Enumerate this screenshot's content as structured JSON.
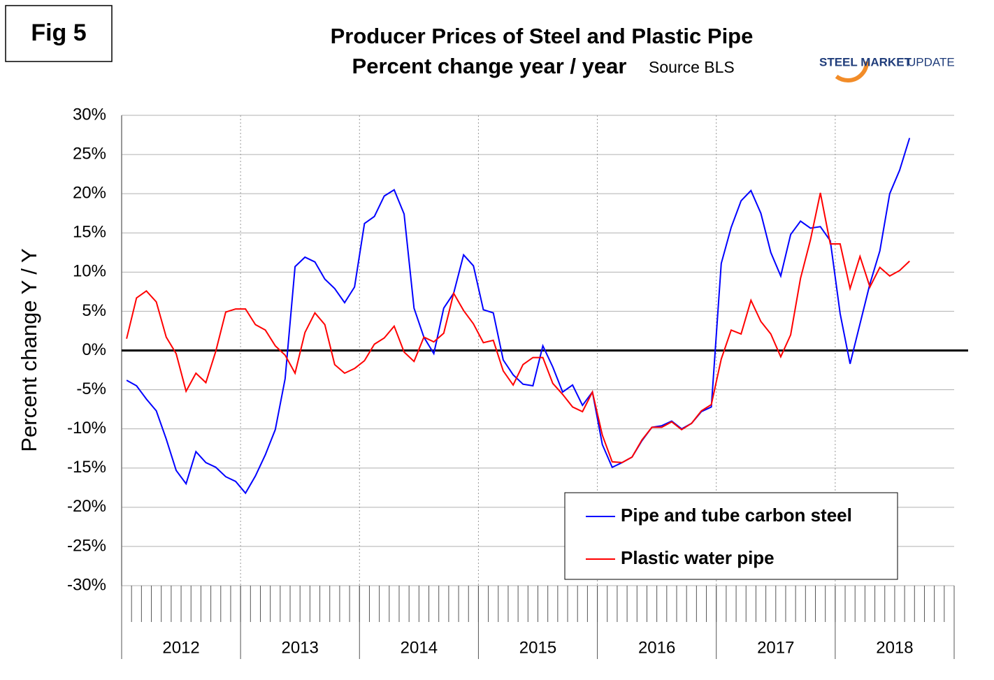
{
  "chart_data": {
    "type": "line",
    "figure_label": "Fig 5",
    "title": "Producer Prices of Steel and Plastic Pipe",
    "subtitle": "Percent change year / year",
    "source": "Source BLS",
    "logo": [
      "STEEL MARKET",
      "UPDATE"
    ],
    "y_label": "Percent change Y / Y",
    "year_labels": [
      "2012",
      "2013",
      "2014",
      "2015",
      "2016",
      "2017",
      "2018"
    ],
    "categories": [
      null,
      null,
      null,
      null,
      null,
      null,
      null,
      null,
      null,
      null,
      null,
      null,
      null,
      null,
      null,
      null,
      null,
      null,
      null,
      null,
      null,
      null,
      null,
      null,
      null,
      null,
      null,
      null,
      null,
      null,
      null,
      null,
      null,
      null,
      null,
      null,
      null,
      null,
      null,
      null,
      null,
      null,
      null,
      null,
      null,
      null,
      null,
      null,
      null,
      null,
      null,
      null,
      null,
      null,
      null,
      null,
      null,
      null,
      null,
      null,
      null,
      null,
      null,
      null,
      null,
      null,
      null,
      null,
      null,
      null,
      null,
      null,
      null,
      null,
      null,
      null,
      null,
      null,
      null,
      null,
      null,
      null,
      null,
      null
    ],
    "series": [
      {
        "name": "Pipe and tube carbon steel",
        "color": "#0000ff",
        "values": [
          -3.8,
          -4.5,
          -6.2,
          -7.7,
          -11.3,
          -15.3,
          -17.0,
          -12.9,
          -14.3,
          -14.9,
          -16.1,
          -16.7,
          -18.2,
          -16.0,
          -13.3,
          -10.1,
          -3.6,
          10.7,
          11.9,
          11.3,
          9.1,
          7.9,
          6.1,
          8.1,
          16.2,
          17.1,
          19.7,
          20.5,
          17.4,
          5.4,
          1.7,
          -0.4,
          5.4,
          7.3,
          12.2,
          10.8,
          5.2,
          4.8,
          -1.2,
          -3.1,
          -4.3,
          -4.5,
          0.6,
          -2.1,
          -5.3,
          -4.4,
          -7.0,
          -5.3,
          -12.0,
          -14.9,
          -14.3,
          -13.6,
          -11.5,
          -9.8,
          -9.6,
          -9.0,
          -10.0,
          -9.3,
          -7.8,
          -7.2,
          11.1,
          15.7,
          19.1,
          20.4,
          17.5,
          12.5,
          9.5,
          14.8,
          16.5,
          15.6,
          15.8,
          14.0,
          4.7,
          -1.7,
          3.4,
          8.5,
          12.7,
          20.0,
          23.0,
          27.1,
          null,
          null,
          null,
          null
        ]
      },
      {
        "name": "Plastic water pipe",
        "color": "#ff0000",
        "values": [
          1.5,
          6.7,
          7.6,
          6.2,
          1.7,
          -0.4,
          -5.2,
          -2.9,
          -4.1,
          -0.1,
          4.9,
          5.3,
          5.3,
          3.3,
          2.6,
          0.6,
          -0.6,
          -2.9,
          2.3,
          4.8,
          3.3,
          -1.8,
          -2.9,
          -2.3,
          -1.3,
          0.8,
          1.6,
          3.1,
          -0.2,
          -1.4,
          1.7,
          1.1,
          2.2,
          7.3,
          5.1,
          3.4,
          1.0,
          1.3,
          -2.6,
          -4.4,
          -1.8,
          -0.9,
          -0.9,
          -4.2,
          -5.6,
          -7.2,
          -7.8,
          -5.3,
          -10.8,
          -14.2,
          -14.3,
          -13.6,
          -11.4,
          -9.8,
          -9.8,
          -9.1,
          -10.1,
          -9.3,
          -7.7,
          -6.9,
          -1.1,
          2.6,
          2.1,
          6.4,
          3.7,
          2.1,
          -0.8,
          2.0,
          9.2,
          14.1,
          20.1,
          13.6,
          13.6,
          7.9,
          12.0,
          8.1,
          10.6,
          9.5,
          10.2,
          11.4,
          null,
          null,
          null,
          null
        ]
      }
    ],
    "ylim": [
      -30,
      30
    ],
    "yticks": [
      {
        "value": -30,
        "label": "-30%"
      },
      {
        "value": -25,
        "label": "-25%"
      },
      {
        "value": -20,
        "label": "-20%"
      },
      {
        "value": -15,
        "label": "-15%"
      },
      {
        "value": -10,
        "label": "-10%"
      },
      {
        "value": -5,
        "label": "-5%"
      },
      {
        "value": 0,
        "label": "0%"
      },
      {
        "value": 5,
        "label": "5%"
      },
      {
        "value": 10,
        "label": "10%"
      },
      {
        "value": 15,
        "label": "15%"
      },
      {
        "value": 20,
        "label": "20%"
      },
      {
        "value": 25,
        "label": "25%"
      },
      {
        "value": 30,
        "label": "30%"
      }
    ],
    "grid": true,
    "legend": "lower right"
  }
}
